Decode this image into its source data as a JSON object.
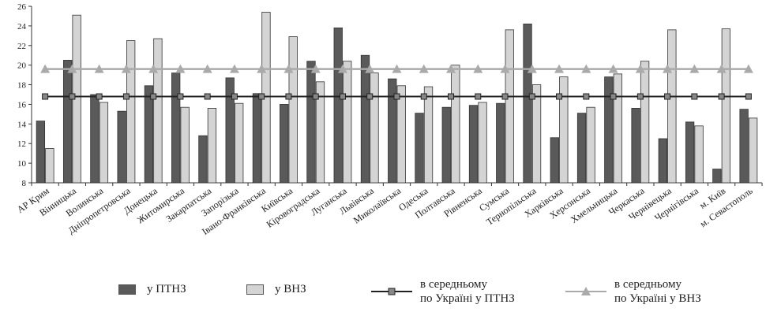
{
  "chart_data": {
    "type": "bar",
    "categories": [
      "АР Крим",
      "Вінницька",
      "Волинська",
      "Дніпропетровська",
      "Донецька",
      "Житомирська",
      "Закарпатська",
      "Запорізька",
      "Івано-Франківська",
      "Київська",
      "Кіровоградська",
      "Луганська",
      "Львівська",
      "Миколаївська",
      "Одеська",
      "Полтавська",
      "Рівненська",
      "Сумська",
      "Тернопільська",
      "Харківська",
      "Херсонська",
      "Хмельницька",
      "Черкаська",
      "Чернівецька",
      "Чернігівська",
      "м. Київ",
      "м. Севастополь"
    ],
    "series": [
      {
        "name": "у ПТНЗ",
        "color": "#5a5a5a",
        "values": [
          14.3,
          20.5,
          17.0,
          15.3,
          17.9,
          19.2,
          12.8,
          18.7,
          17.1,
          16.0,
          20.4,
          23.8,
          21.0,
          18.6,
          15.1,
          15.7,
          15.9,
          16.1,
          24.2,
          12.6,
          15.1,
          18.8,
          15.6,
          12.5,
          14.2,
          9.4,
          15.5
        ]
      },
      {
        "name": "у ВНЗ",
        "color": "#d4d4d4",
        "values": [
          11.5,
          25.1,
          16.2,
          22.5,
          22.7,
          15.7,
          15.6,
          16.1,
          25.4,
          22.9,
          18.3,
          20.4,
          19.2,
          17.9,
          17.8,
          20.0,
          16.2,
          23.6,
          18.0,
          18.8,
          15.7,
          19.1,
          20.4,
          23.6,
          13.8,
          23.7,
          14.6
        ]
      }
    ],
    "reference_lines": [
      {
        "name": "в середньому по Україні у ПТНЗ",
        "value": 16.8,
        "color": "#222222",
        "marker": "square"
      },
      {
        "name": "в середньому по Україні у ВНЗ",
        "value": 19.6,
        "color": "#aaaaaa",
        "marker": "triangle"
      }
    ],
    "ylim": [
      8,
      26
    ],
    "yticks": [
      8,
      10,
      12,
      14,
      16,
      18,
      20,
      22,
      24,
      26
    ],
    "grid": false,
    "legend_position": "bottom",
    "xlabel": "",
    "ylabel": ""
  },
  "legend": [
    {
      "label": "у ПТНЗ",
      "kind": "box",
      "color": "#5a5a5a"
    },
    {
      "label": "у ВНЗ",
      "kind": "box",
      "color": "#d4d4d4"
    },
    {
      "label_line1": "в середньому",
      "label_line2": "по Україні у ПТНЗ",
      "kind": "line-square",
      "color": "#222222"
    },
    {
      "label_line1": "в середньому",
      "label_line2": "по Україні у ВНЗ",
      "kind": "line-triangle",
      "color": "#aaaaaa"
    }
  ]
}
